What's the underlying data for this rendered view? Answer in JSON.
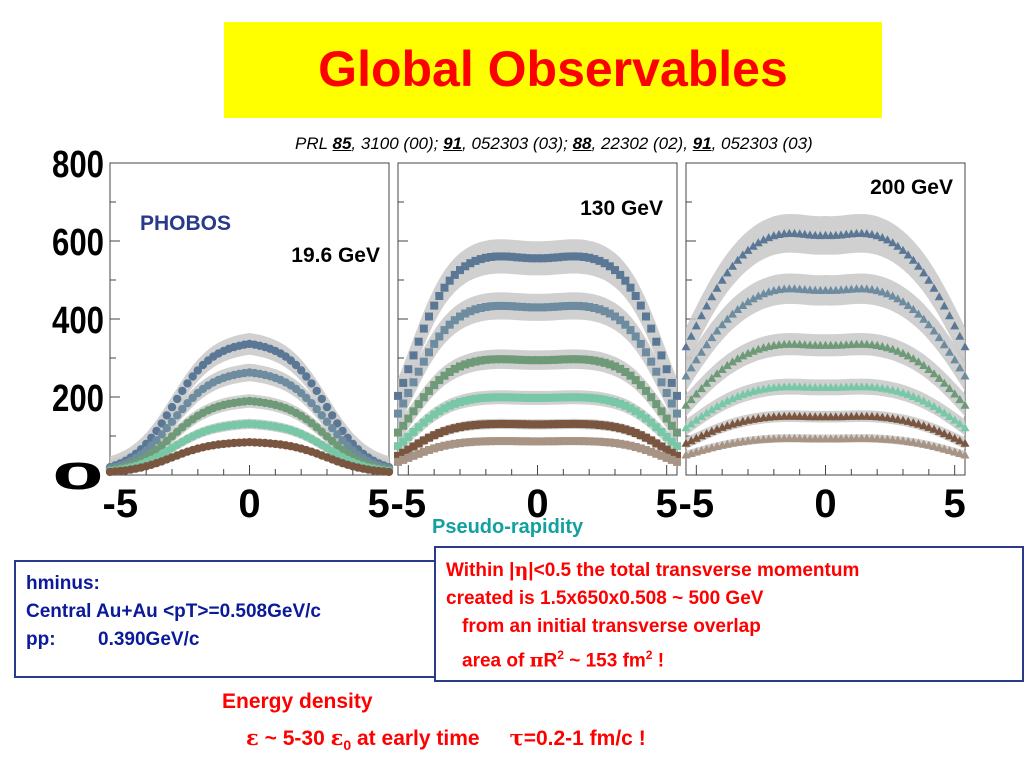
{
  "slide": {
    "title": "Global Observables",
    "title_bg": "#ffff00",
    "title_color": "#ff0000",
    "reference": {
      "prefix": "PRL ",
      "v1": "85",
      "p1": ", 3100 (00); ",
      "v2": "91",
      "p2": ", 052303 (03); ",
      "v3": "88",
      "p3": ", 22302 (02), ",
      "v4": "91",
      "p4": ", 052303 (03)"
    },
    "left_box": {
      "line1": "hminus:",
      "line2": "Central Au+Au <pT>=0.508GeV/c",
      "pp_label": "pp:",
      "pp_value": "0.390GeV/c"
    },
    "right_box": {
      "line1_a": "Within |",
      "line1_eta": "η",
      "line1_b": "|<0.5 the total transverse momentum",
      "line2": "created is 1.5x650x0.508 ~ 500 GeV",
      "line3": "from an initial transverse overlap",
      "line4_a": "area of ",
      "line4_pi": "π",
      "line4_b": "R",
      "line4_sup1": "2",
      "line4_c": " ~ 153 fm",
      "line4_sup2": "2",
      "line4_d": " !"
    },
    "energy": {
      "title": "Energy density",
      "eps": "ε",
      "mid": " ~ 5-30 ",
      "eps0": "ε",
      "sub0": "0",
      "after": " at early time",
      "tau": "τ",
      "tail": "=0.2-1 fm/c !"
    }
  },
  "chart_data": {
    "type": "scatter",
    "xlabel": "Pseudo-rapidity",
    "experiment_label": "PHOBOS",
    "ylim": [
      0,
      800
    ],
    "yticks": [
      "800",
      "600",
      "400",
      "200",
      "0"
    ],
    "xticks": [
      "-5",
      "0",
      "5"
    ],
    "xlim": [
      -5.4,
      5.4
    ],
    "band_color": "#c8c8c8",
    "centrality_colors": [
      "#5a7896",
      "#6e8ca0",
      "#6e9a78",
      "#78c8a8",
      "#7a5640",
      "#a89484"
    ],
    "panels": [
      {
        "energy_label": "19.6 GeV",
        "marker": "circle",
        "eta_max": 3.0,
        "edge_width": 0.8,
        "dip": 0.0,
        "plateau_values": [
          340,
          265,
          190,
          130,
          82
        ]
      },
      {
        "energy_label": "130 GeV",
        "marker": "square",
        "eta_max": 4.9,
        "edge_width": 0.8,
        "dip": 0.03,
        "plateau_values": [
          570,
          440,
          300,
          200,
          130,
          85
        ]
      },
      {
        "energy_label": "200 GeV",
        "marker": "triangle",
        "eta_max": 5.4,
        "edge_width": 1.2,
        "dip": 0.05,
        "plateau_values": [
          650,
          500,
          350,
          235,
          155,
          95
        ]
      }
    ]
  }
}
